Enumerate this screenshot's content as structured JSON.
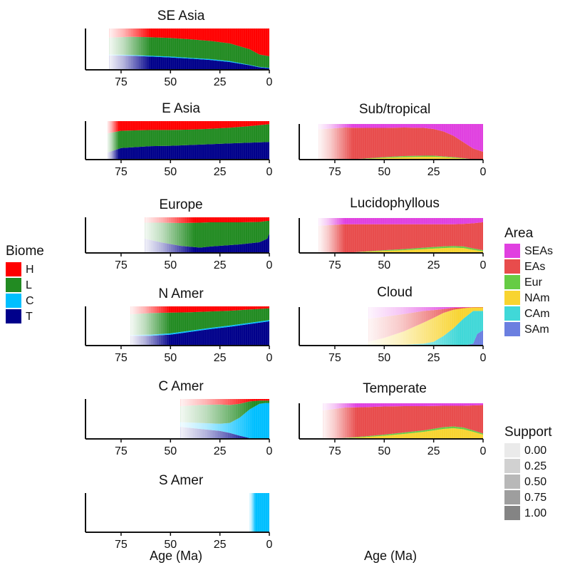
{
  "figure": {
    "x_axis_label": "Age (Ma)",
    "x_ticks": [
      75,
      50,
      25,
      0
    ]
  },
  "legends": {
    "biome": {
      "title": "Biome",
      "items": [
        {
          "label": "H",
          "color": "#ff0000"
        },
        {
          "label": "L",
          "color": "#228b22"
        },
        {
          "label": "C",
          "color": "#00bfff"
        },
        {
          "label": "T",
          "color": "#00008b"
        }
      ]
    },
    "area": {
      "title": "Area",
      "items": [
        {
          "label": "SEAs",
          "color": "#e040e0"
        },
        {
          "label": "EAs",
          "color": "#e84c4c"
        },
        {
          "label": "Eur",
          "color": "#66cc44"
        },
        {
          "label": "NAm",
          "color": "#f8d430"
        },
        {
          "label": "CAm",
          "color": "#40d8d8"
        },
        {
          "label": "SAm",
          "color": "#6b7fe0"
        }
      ]
    },
    "support": {
      "title": "Support",
      "items": [
        {
          "label": "0.00",
          "level": 0.0
        },
        {
          "label": "0.25",
          "level": 0.25
        },
        {
          "label": "0.50",
          "level": 0.5
        },
        {
          "label": "0.75",
          "level": 0.75
        },
        {
          "label": "1.00",
          "level": 1.0
        }
      ]
    }
  },
  "chart_data": [
    {
      "type": "area",
      "title": "SE Asia",
      "xlabel": "",
      "xlim": [
        93,
        0
      ],
      "ylim": [
        0,
        1
      ],
      "x_start": 81,
      "fade_until": 60,
      "x": [
        81,
        70,
        60,
        50,
        40,
        30,
        20,
        10,
        5,
        0
      ],
      "series": [
        {
          "legend": "biome",
          "key": "T",
          "values": [
            0.35,
            0.34,
            0.32,
            0.3,
            0.27,
            0.24,
            0.19,
            0.11,
            0.06,
            0.04
          ]
        },
        {
          "legend": "biome",
          "key": "C",
          "values": [
            0.02,
            0.02,
            0.02,
            0.02,
            0.02,
            0.02,
            0.02,
            0.01,
            0.01,
            0.01
          ]
        },
        {
          "legend": "biome",
          "key": "L",
          "values": [
            0.41,
            0.44,
            0.45,
            0.45,
            0.45,
            0.44,
            0.43,
            0.38,
            0.3,
            0.28
          ]
        },
        {
          "legend": "biome",
          "key": "H",
          "values": [
            0.22,
            0.2,
            0.21,
            0.23,
            0.26,
            0.3,
            0.36,
            0.5,
            0.63,
            0.67
          ]
        }
      ]
    },
    {
      "type": "area",
      "title": "E Asia",
      "xlabel": "",
      "xlim": [
        93,
        0
      ],
      "ylim": [
        0,
        1
      ],
      "x_start": 82,
      "fade_until": 76,
      "x": [
        82,
        75,
        60,
        50,
        40,
        30,
        20,
        10,
        0
      ],
      "series": [
        {
          "legend": "biome",
          "key": "T",
          "values": [
            0.18,
            0.3,
            0.35,
            0.36,
            0.38,
            0.4,
            0.42,
            0.44,
            0.46
          ]
        },
        {
          "legend": "biome",
          "key": "C",
          "values": [
            0.0,
            0.0,
            0.0,
            0.0,
            0.0,
            0.0,
            0.0,
            0.0,
            0.0
          ]
        },
        {
          "legend": "biome",
          "key": "L",
          "values": [
            0.5,
            0.45,
            0.42,
            0.41,
            0.4,
            0.4,
            0.41,
            0.43,
            0.46
          ]
        },
        {
          "legend": "biome",
          "key": "H",
          "values": [
            0.32,
            0.25,
            0.23,
            0.23,
            0.22,
            0.2,
            0.17,
            0.13,
            0.08
          ]
        }
      ]
    },
    {
      "type": "area",
      "title": "Europe",
      "xlabel": "",
      "xlim": [
        93,
        0
      ],
      "ylim": [
        0,
        1
      ],
      "x_start": 63,
      "fade_until": 38,
      "x": [
        63,
        55,
        45,
        35,
        30,
        25,
        15,
        5,
        1,
        0
      ],
      "series": [
        {
          "legend": "biome",
          "key": "T",
          "values": [
            0.4,
            0.3,
            0.2,
            0.15,
            0.18,
            0.2,
            0.24,
            0.3,
            0.4,
            0.55
          ]
        },
        {
          "legend": "biome",
          "key": "C",
          "values": [
            0.0,
            0.0,
            0.0,
            0.0,
            0.0,
            0.0,
            0.0,
            0.0,
            0.0,
            0.0
          ]
        },
        {
          "legend": "biome",
          "key": "L",
          "values": [
            0.45,
            0.55,
            0.64,
            0.7,
            0.68,
            0.66,
            0.62,
            0.57,
            0.5,
            0.35
          ]
        },
        {
          "legend": "biome",
          "key": "H",
          "values": [
            0.15,
            0.15,
            0.16,
            0.15,
            0.14,
            0.14,
            0.14,
            0.13,
            0.1,
            0.1
          ]
        }
      ]
    },
    {
      "type": "area",
      "title": "N Amer",
      "xlabel": "",
      "xlim": [
        93,
        0
      ],
      "ylim": [
        0,
        1
      ],
      "x_start": 70,
      "fade_until": 50,
      "x": [
        70,
        60,
        50,
        40,
        30,
        20,
        10,
        0
      ],
      "series": [
        {
          "legend": "biome",
          "key": "T",
          "values": [
            0.25,
            0.25,
            0.28,
            0.35,
            0.42,
            0.48,
            0.55,
            0.62
          ]
        },
        {
          "legend": "biome",
          "key": "C",
          "values": [
            0.02,
            0.03,
            0.03,
            0.03,
            0.03,
            0.03,
            0.03,
            0.03
          ]
        },
        {
          "legend": "biome",
          "key": "L",
          "values": [
            0.53,
            0.55,
            0.53,
            0.47,
            0.42,
            0.38,
            0.34,
            0.3
          ]
        },
        {
          "legend": "biome",
          "key": "H",
          "values": [
            0.2,
            0.17,
            0.16,
            0.15,
            0.13,
            0.11,
            0.08,
            0.05
          ]
        }
      ]
    },
    {
      "type": "area",
      "title": "C Amer",
      "xlabel": "",
      "xlim": [
        93,
        0
      ],
      "ylim": [
        0,
        1
      ],
      "x_start": 45,
      "fade_until": 8,
      "x": [
        45,
        35,
        25,
        20,
        15,
        10,
        5,
        2,
        0
      ],
      "series": [
        {
          "legend": "biome",
          "key": "T",
          "values": [
            0.3,
            0.25,
            0.2,
            0.15,
            0.08,
            0.02,
            0.0,
            0.0,
            0.0
          ]
        },
        {
          "legend": "biome",
          "key": "C",
          "values": [
            0.12,
            0.15,
            0.18,
            0.25,
            0.45,
            0.72,
            0.88,
            0.9,
            0.9
          ]
        },
        {
          "legend": "biome",
          "key": "L",
          "values": [
            0.4,
            0.45,
            0.48,
            0.45,
            0.35,
            0.2,
            0.08,
            0.06,
            0.06
          ]
        },
        {
          "legend": "biome",
          "key": "H",
          "values": [
            0.18,
            0.15,
            0.14,
            0.15,
            0.12,
            0.06,
            0.04,
            0.04,
            0.04
          ]
        }
      ]
    },
    {
      "type": "area",
      "title": "S Amer",
      "xlabel": "Age (Ma)",
      "xlim": [
        93,
        0
      ],
      "ylim": [
        0,
        1
      ],
      "x_start": 10,
      "fade_until": 7,
      "x": [
        10,
        5,
        0
      ],
      "series": [
        {
          "legend": "biome",
          "key": "T",
          "values": [
            0.0,
            0.0,
            0.0
          ]
        },
        {
          "legend": "biome",
          "key": "C",
          "values": [
            1.0,
            1.0,
            1.0
          ]
        },
        {
          "legend": "biome",
          "key": "L",
          "values": [
            0.0,
            0.0,
            0.0
          ]
        },
        {
          "legend": "biome",
          "key": "H",
          "values": [
            0.0,
            0.0,
            0.0
          ]
        }
      ]
    },
    {
      "type": "area",
      "title": "Sub/tropical",
      "xlabel": "",
      "xlim": [
        93,
        0
      ],
      "ylim": [
        0,
        1
      ],
      "x_start": 83,
      "fade_until": 66,
      "x": [
        83,
        70,
        60,
        50,
        40,
        30,
        25,
        20,
        15,
        10,
        5,
        0
      ],
      "series": [
        {
          "legend": "area",
          "key": "SAm",
          "values": [
            0,
            0,
            0,
            0,
            0,
            0,
            0,
            0,
            0,
            0,
            0,
            0
          ]
        },
        {
          "legend": "area",
          "key": "CAm",
          "values": [
            0,
            0,
            0,
            0,
            0,
            0,
            0,
            0,
            0,
            0,
            0,
            0
          ]
        },
        {
          "legend": "area",
          "key": "NAm",
          "values": [
            0.0,
            0.0,
            0.02,
            0.05,
            0.07,
            0.08,
            0.08,
            0.07,
            0.05,
            0.03,
            0.01,
            0.0
          ]
        },
        {
          "legend": "area",
          "key": "Eur",
          "values": [
            0.0,
            0.0,
            0.01,
            0.02,
            0.03,
            0.03,
            0.03,
            0.02,
            0.02,
            0.01,
            0.0,
            0.0
          ]
        },
        {
          "legend": "area",
          "key": "EAs",
          "values": [
            0.85,
            0.9,
            0.86,
            0.82,
            0.8,
            0.78,
            0.75,
            0.7,
            0.6,
            0.45,
            0.3,
            0.22
          ]
        },
        {
          "legend": "area",
          "key": "SEAs",
          "values": [
            0.15,
            0.1,
            0.11,
            0.11,
            0.1,
            0.11,
            0.14,
            0.21,
            0.33,
            0.51,
            0.69,
            0.78
          ]
        }
      ]
    },
    {
      "type": "area",
      "title": "Lucidophyllous",
      "xlabel": "",
      "xlim": [
        93,
        0
      ],
      "ylim": [
        0,
        1
      ],
      "x_start": 83,
      "fade_until": 70,
      "x": [
        83,
        70,
        60,
        50,
        40,
        30,
        20,
        15,
        10,
        5,
        0
      ],
      "series": [
        {
          "legend": "area",
          "key": "SAm",
          "values": [
            0,
            0,
            0,
            0,
            0,
            0,
            0,
            0,
            0,
            0,
            0
          ]
        },
        {
          "legend": "area",
          "key": "CAm",
          "values": [
            0,
            0,
            0,
            0,
            0,
            0,
            0,
            0,
            0,
            0,
            0
          ]
        },
        {
          "legend": "area",
          "key": "NAm",
          "values": [
            0.0,
            0.0,
            0.03,
            0.06,
            0.08,
            0.11,
            0.14,
            0.15,
            0.14,
            0.09,
            0.05
          ]
        },
        {
          "legend": "area",
          "key": "Eur",
          "values": [
            0.0,
            0.0,
            0.01,
            0.02,
            0.03,
            0.04,
            0.05,
            0.05,
            0.05,
            0.04,
            0.03
          ]
        },
        {
          "legend": "area",
          "key": "EAs",
          "values": [
            0.78,
            0.82,
            0.78,
            0.74,
            0.71,
            0.67,
            0.63,
            0.62,
            0.64,
            0.72,
            0.8
          ]
        },
        {
          "legend": "area",
          "key": "SEAs",
          "values": [
            0.22,
            0.18,
            0.18,
            0.18,
            0.18,
            0.18,
            0.18,
            0.18,
            0.17,
            0.15,
            0.12
          ]
        }
      ]
    },
    {
      "type": "area",
      "title": "Cloud",
      "xlabel": "",
      "xlim": [
        93,
        0
      ],
      "ylim": [
        0,
        1
      ],
      "x_start": 58,
      "fade_until": 12,
      "x": [
        58,
        50,
        40,
        30,
        25,
        20,
        15,
        10,
        5,
        3,
        0
      ],
      "series": [
        {
          "legend": "area",
          "key": "SAm",
          "values": [
            0.0,
            0.0,
            0.0,
            0.0,
            0.0,
            0.0,
            0.0,
            0.0,
            0.05,
            0.3,
            0.4
          ]
        },
        {
          "legend": "area",
          "key": "CAm",
          "values": [
            0.0,
            0.0,
            0.02,
            0.05,
            0.1,
            0.25,
            0.45,
            0.7,
            0.85,
            0.6,
            0.5
          ]
        },
        {
          "legend": "area",
          "key": "NAm",
          "values": [
            0.1,
            0.2,
            0.35,
            0.55,
            0.62,
            0.6,
            0.48,
            0.27,
            0.09,
            0.09,
            0.09
          ]
        },
        {
          "legend": "area",
          "key": "Eur",
          "values": [
            0.0,
            0.0,
            0.0,
            0.0,
            0.0,
            0.0,
            0.0,
            0.0,
            0.0,
            0.0,
            0.0
          ]
        },
        {
          "legend": "area",
          "key": "EAs",
          "values": [
            0.6,
            0.55,
            0.45,
            0.3,
            0.2,
            0.1,
            0.05,
            0.02,
            0.01,
            0.01,
            0.01
          ]
        },
        {
          "legend": "area",
          "key": "SEAs",
          "values": [
            0.3,
            0.25,
            0.18,
            0.1,
            0.08,
            0.05,
            0.02,
            0.01,
            0.0,
            0.0,
            0.0
          ]
        }
      ]
    },
    {
      "type": "area",
      "title": "Temperate",
      "xlabel": "Age (Ma)",
      "xlim": [
        93,
        0
      ],
      "ylim": [
        0,
        1
      ],
      "x_start": 81,
      "fade_until": 64,
      "x": [
        81,
        70,
        60,
        50,
        40,
        30,
        20,
        15,
        10,
        5,
        0
      ],
      "series": [
        {
          "legend": "area",
          "key": "SAm",
          "values": [
            0,
            0,
            0,
            0,
            0,
            0,
            0,
            0,
            0,
            0,
            0
          ]
        },
        {
          "legend": "area",
          "key": "CAm",
          "values": [
            0,
            0,
            0,
            0,
            0,
            0,
            0,
            0,
            0,
            0,
            0
          ]
        },
        {
          "legend": "area",
          "key": "NAm",
          "values": [
            0.0,
            0.02,
            0.05,
            0.09,
            0.14,
            0.2,
            0.28,
            0.3,
            0.27,
            0.2,
            0.12
          ]
        },
        {
          "legend": "area",
          "key": "Eur",
          "values": [
            0.0,
            0.01,
            0.02,
            0.03,
            0.04,
            0.04,
            0.05,
            0.05,
            0.05,
            0.04,
            0.03
          ]
        },
        {
          "legend": "area",
          "key": "EAs",
          "values": [
            0.8,
            0.85,
            0.82,
            0.79,
            0.74,
            0.68,
            0.6,
            0.58,
            0.61,
            0.7,
            0.8
          ]
        },
        {
          "legend": "area",
          "key": "SEAs",
          "values": [
            0.2,
            0.12,
            0.11,
            0.09,
            0.08,
            0.08,
            0.07,
            0.07,
            0.07,
            0.06,
            0.05
          ]
        }
      ]
    }
  ]
}
